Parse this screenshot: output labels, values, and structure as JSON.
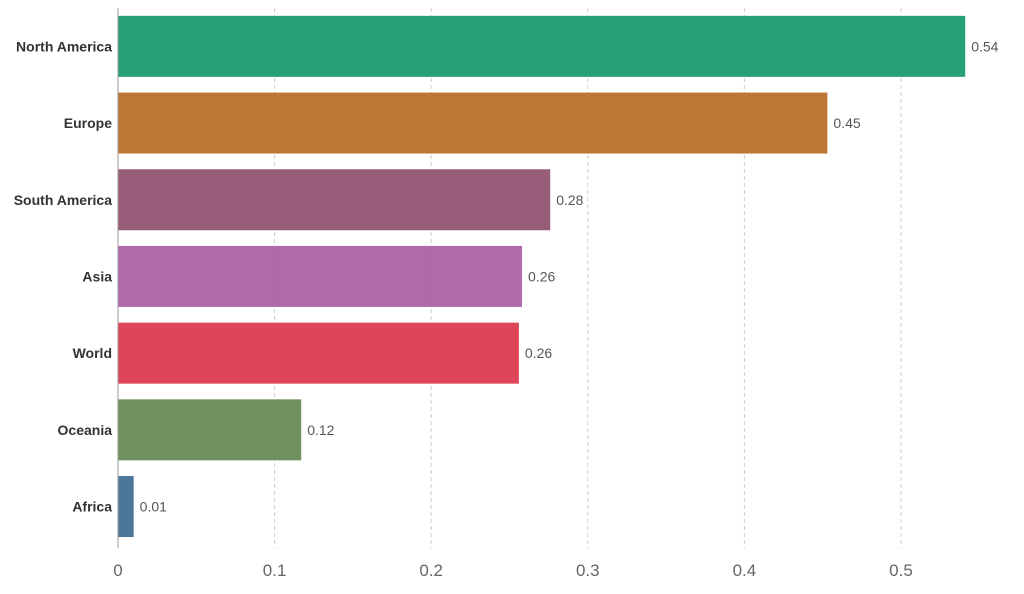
{
  "chart_data": {
    "type": "bar",
    "orientation": "horizontal",
    "title": "",
    "xlabel": "",
    "ylabel": "",
    "xlim": [
      0,
      0.55
    ],
    "x_ticks": [
      0,
      0.1,
      0.2,
      0.3,
      0.4,
      0.5
    ],
    "x_tick_labels": [
      "0",
      "0.1",
      "0.2",
      "0.3",
      "0.4",
      "0.5"
    ],
    "grid": true,
    "categories": [
      "North America",
      "Europe",
      "South America",
      "Asia",
      "World",
      "Oceania",
      "Africa"
    ],
    "values": [
      0.541,
      0.453,
      0.276,
      0.258,
      0.256,
      0.117,
      0.01
    ],
    "value_labels": [
      "0.54",
      "0.45",
      "0.28",
      "0.26",
      "0.26",
      "0.12",
      "0.01"
    ],
    "colors": [
      "#1b9a72",
      "#bb6f2a",
      "#925472",
      "#ab62a8",
      "#dc3b50",
      "#678c56",
      "#426f95"
    ]
  }
}
